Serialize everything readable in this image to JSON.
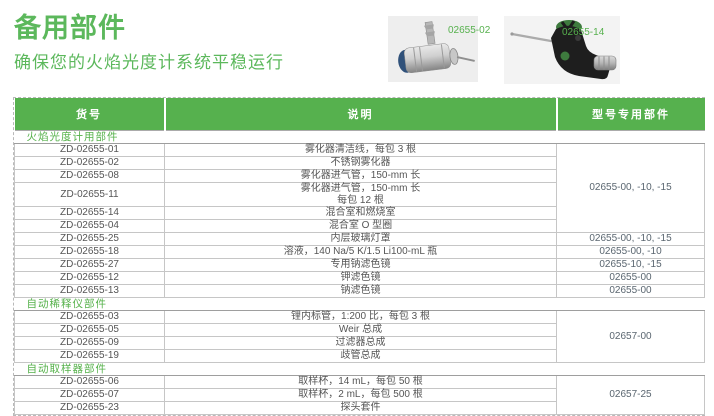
{
  "header": {
    "title": "备用部件",
    "subtitle": "确保您的火焰光度计系统平稳运行"
  },
  "products": [
    {
      "label": "02655-02",
      "name": "不锈钢雾化器"
    },
    {
      "label": "02655-14",
      "name": "混合室和燃烧室"
    }
  ],
  "colors": {
    "accent_green": "#56b14e",
    "title_green": "#5cb85c",
    "text_gray": "#555555",
    "border_gray": "#c6c6c6"
  },
  "table": {
    "headers": [
      "货号",
      "说明",
      "型号专用部件"
    ],
    "sections": [
      {
        "name": "火焰光度计用部件",
        "rows": [
          {
            "part": "ZD-02655-01",
            "desc": "雾化器清洁线，每包 3 根",
            "model": "02655-00, -10, -15",
            "model_span": 6
          },
          {
            "part": "ZD-02655-02",
            "desc": "不锈钢雾化器"
          },
          {
            "part": "ZD-02655-08",
            "desc": "雾化器进气管，150-mm 长"
          },
          {
            "part": "ZD-02655-11",
            "desc": "雾化器进气管，150-mm 长\n每包 12 根"
          },
          {
            "part": "ZD-02655-14",
            "desc": "混合室和燃烧室"
          },
          {
            "part": "ZD-02655-04",
            "desc": "混合室 O 型圈"
          },
          {
            "part": "ZD-02655-25",
            "desc": "内层玻璃灯罩",
            "model": "02655-00, -10, -15",
            "model_span": 1
          },
          {
            "part": "ZD-02655-18",
            "desc": "溶液，140 Na/5 K/1.5 Li100-mL 瓶",
            "model": "02655-00, -10",
            "model_span": 1
          },
          {
            "part": "ZD-02655-27",
            "desc": "专用钠滤色镜",
            "model": "02655-10, -15",
            "model_span": 1
          },
          {
            "part": "ZD-02655-12",
            "desc": "钾滤色镜",
            "model": "02655-00",
            "model_span": 1
          },
          {
            "part": "ZD-02655-13",
            "desc": "钠滤色镜",
            "model": "02655-00",
            "model_span": 1
          }
        ]
      },
      {
        "name": "自动稀释仪部件",
        "rows": [
          {
            "part": "ZD-02655-03",
            "desc": "锂内标管，1:200 比，每包 3 根",
            "model": "02657-00",
            "model_span": 4
          },
          {
            "part": "ZD-02655-05",
            "desc": "Weir 总成"
          },
          {
            "part": "ZD-02655-09",
            "desc": "过滤器总成"
          },
          {
            "part": "ZD-02655-19",
            "desc": "歧管总成"
          }
        ]
      },
      {
        "name": "自动取样器部件",
        "rows": [
          {
            "part": "ZD-02655-06",
            "desc": "取样杯，14 mL，每包 50 根",
            "model": "02657-25",
            "model_span": 3
          },
          {
            "part": "ZD-02655-07",
            "desc": "取样杯，2 mL，每包 500 根"
          },
          {
            "part": "ZD-02655-23",
            "desc": "探头套件"
          }
        ]
      }
    ]
  }
}
